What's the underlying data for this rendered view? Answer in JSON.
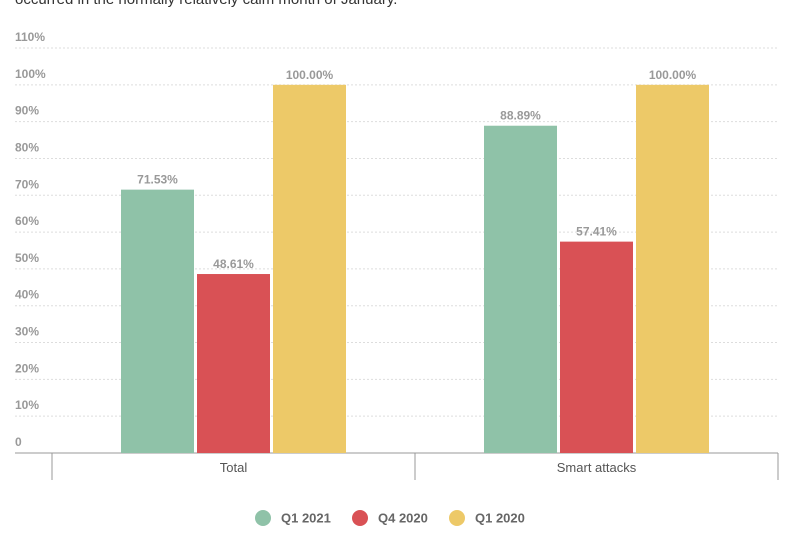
{
  "chart_data": {
    "type": "bar",
    "subtitle": "occurred in the normally relatively calm month of January.",
    "categories": [
      "Total",
      "Smart attacks"
    ],
    "series": [
      {
        "name": "Q1 2021",
        "color": "#8fc2a8",
        "values": [
          71.53,
          88.89
        ],
        "value_labels": [
          "71.53%",
          "88.89%"
        ]
      },
      {
        "name": "Q4 2020",
        "color": "#d95155",
        "values": [
          48.61,
          57.41
        ],
        "value_labels": [
          "48.61%",
          "57.41%"
        ]
      },
      {
        "name": "Q1 2020",
        "color": "#edc968",
        "values": [
          100,
          100
        ],
        "value_labels": [
          "100.00%",
          "100.00%"
        ]
      }
    ],
    "ylim": [
      0,
      110
    ],
    "yticks": [
      0,
      {
        "value": 10,
        "label": "10%"
      },
      {
        "value": 20,
        "label": "20%"
      },
      {
        "value": 30,
        "label": "30%"
      },
      {
        "value": 40,
        "label": "40%"
      },
      {
        "value": 50,
        "label": "50%"
      },
      {
        "value": 60,
        "label": "60%"
      },
      {
        "value": 70,
        "label": "70%"
      },
      {
        "value": 80,
        "label": "80%"
      },
      {
        "value": 90,
        "label": "90%"
      },
      {
        "value": 100,
        "label": "100%"
      },
      {
        "value": 110,
        "label": "110%"
      }
    ],
    "grid": true,
    "legend": "bottom"
  }
}
